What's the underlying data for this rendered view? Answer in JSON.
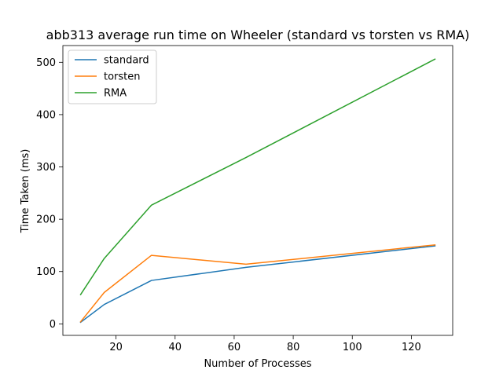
{
  "chart_data": {
    "type": "line",
    "title": "abb313 average run time on Wheeler (standard vs torsten vs RMA)",
    "xlabel": "Number of Processes",
    "ylabel": "Time Taken (ms)",
    "xlim": [
      2,
      134
    ],
    "ylim": [
      -22,
      532
    ],
    "xticks": [
      20,
      40,
      60,
      80,
      100,
      120
    ],
    "yticks": [
      0,
      100,
      200,
      300,
      400,
      500
    ],
    "grid": false,
    "legend_position": "top-left",
    "series": [
      {
        "name": "standard",
        "color": "#1f77b4",
        "x": [
          8,
          16,
          32,
          64,
          128
        ],
        "y": [
          3,
          37,
          83,
          108,
          149
        ]
      },
      {
        "name": "torsten",
        "color": "#ff7f0e",
        "x": [
          8,
          16,
          32,
          64,
          128
        ],
        "y": [
          4,
          60,
          131,
          114,
          151
        ]
      },
      {
        "name": "RMA",
        "color": "#2ca02c",
        "x": [
          8,
          16,
          32,
          64,
          128
        ],
        "y": [
          56,
          125,
          227,
          318,
          506
        ]
      }
    ]
  }
}
